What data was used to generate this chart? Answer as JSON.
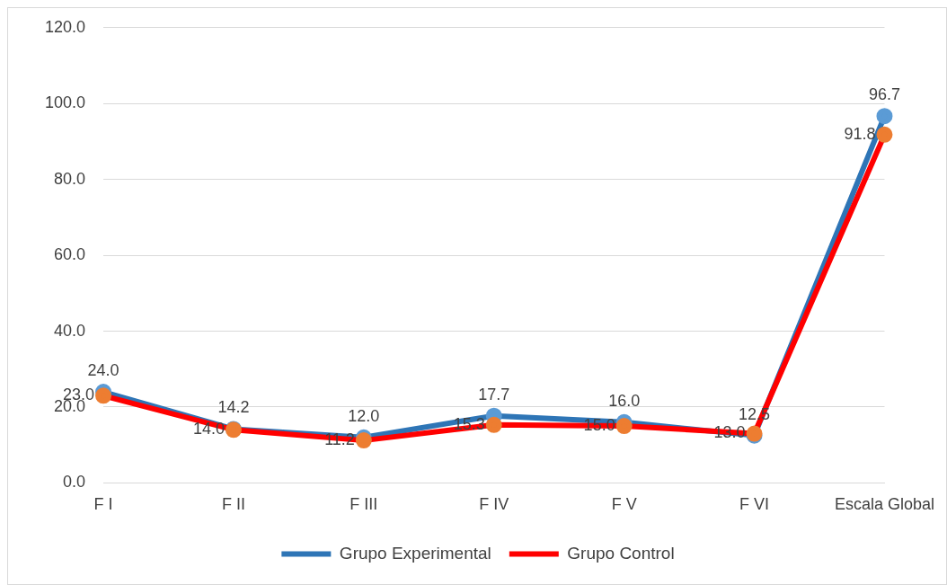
{
  "chart_data": {
    "type": "line",
    "categories": [
      "F I",
      "F II",
      "F III",
      "F IV",
      "F V",
      "F VI",
      "Escala Global"
    ],
    "series": [
      {
        "name": "Grupo Experimental",
        "color": "#2e75b6",
        "colors": [
          "#5b9bd5",
          "#5b9bd5",
          "#5b9bd5",
          "#5b9bd5",
          "#5b9bd5",
          "#5b9bd5",
          "#5b9bd5"
        ],
        "values": [
          24.0,
          14.2,
          12.0,
          17.7,
          16.0,
          12.5,
          96.7
        ],
        "value_labels": [
          "24.0",
          "14.2",
          "12.0",
          "17.7",
          "16.0",
          "12.5",
          "96.7"
        ]
      },
      {
        "name": "Grupo Control",
        "color": "#ff0000",
        "colors": [
          "#ed7d31",
          "#ed7d31",
          "#ed7d31",
          "#ed7d31",
          "#ed7d31",
          "#ed7d31",
          "#ed7d31"
        ],
        "values": [
          23.0,
          14.0,
          11.2,
          15.3,
          15.0,
          13.0,
          91.8
        ],
        "value_labels": [
          "23.0",
          "14.0",
          "11.2",
          "15.3",
          "15.0",
          "13.0",
          "91.8"
        ]
      }
    ],
    "ylim": [
      0,
      120
    ],
    "yticks": [
      {
        "value": 0,
        "label": "0.0"
      },
      {
        "value": 20,
        "label": "20.0"
      },
      {
        "value": 40,
        "label": "40.0"
      },
      {
        "value": 60,
        "label": "60.0"
      },
      {
        "value": 80,
        "label": "80.0"
      },
      {
        "value": 100,
        "label": "100.0"
      },
      {
        "value": 120,
        "label": "120.0"
      }
    ],
    "grid": "y",
    "legend": "bottom",
    "marker": "circle",
    "line_style": "solid"
  }
}
